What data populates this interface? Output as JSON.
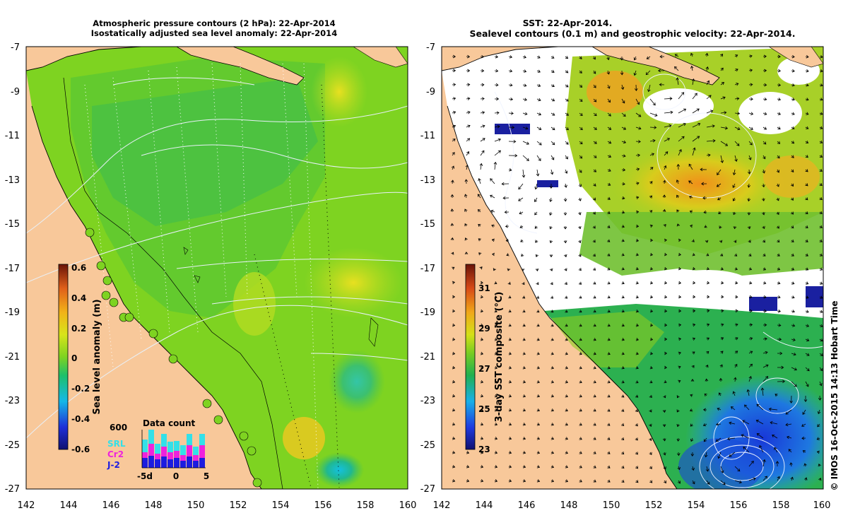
{
  "left_panel": {
    "title_line1": "Atmospheric pressure contours (2 hPa): 22-Apr-2014",
    "title_line2": "Isostatically adjusted sea level anomaly: 22-Apr-2014",
    "x_ticks": [
      "142",
      "144",
      "146",
      "148",
      "150",
      "152",
      "154",
      "156",
      "158",
      "160"
    ],
    "y_ticks": [
      "-7",
      "-9",
      "-11",
      "-13",
      "-15",
      "-17",
      "-19",
      "-21",
      "-23",
      "-25",
      "-27"
    ],
    "colorbar": {
      "label": "Sea level anomaly (m)",
      "ticks": [
        "0.6",
        "0.4",
        "0.2",
        "0",
        "-0.2",
        "-0.4",
        "-0.6"
      ]
    },
    "inset": {
      "title": "Data count",
      "scale_label": "600",
      "x_ticks": [
        "-5d",
        "0",
        "5"
      ],
      "legend": [
        {
          "name": "SRL",
          "color": "#33e0e8"
        },
        {
          "name": "Cr2",
          "color": "#ee22dd"
        },
        {
          "name": "J-2",
          "color": "#1c1ce0"
        }
      ]
    }
  },
  "right_panel": {
    "title_line1": "SST: 22-Apr-2014.",
    "title_line2": "Sealevel contours (0.1 m) and geostrophic velocity: 22-Apr-2014.",
    "x_ticks": [
      "142",
      "144",
      "146",
      "148",
      "150",
      "152",
      "154",
      "156",
      "158",
      "160"
    ],
    "y_ticks": [
      "-7",
      "-9",
      "-11",
      "-13",
      "-15",
      "-17",
      "-19",
      "-21",
      "-23",
      "-25",
      "-27"
    ],
    "colorbar": {
      "label": "3-day SST composite (°C)",
      "ticks": [
        "31",
        "29",
        "27",
        "25",
        "23"
      ]
    }
  },
  "credit": "© IMOS 16-Oct-2015 14:13 Hobart Time",
  "colors": {
    "land": "#f8c89a",
    "sla_zero": "#7ed321",
    "sst_warm": "#f0a020",
    "sst_cool": "#1858e0",
    "cloud": "#ffffff"
  }
}
